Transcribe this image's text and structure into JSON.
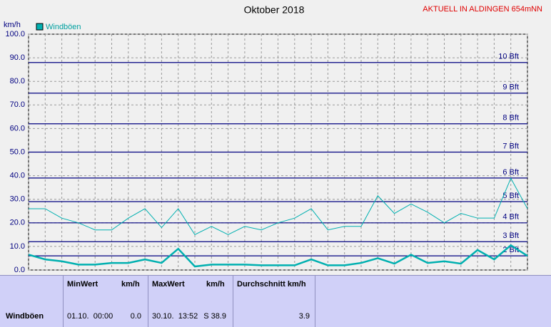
{
  "chart_data": {
    "type": "line",
    "title": "Oktober 2018",
    "subtitle": "AKTUELL IN ALDINGEN 654mNN",
    "y_label": "km/h",
    "x": [
      1,
      2,
      3,
      4,
      5,
      6,
      7,
      8,
      9,
      10,
      11,
      12,
      13,
      14,
      15,
      16,
      17,
      18,
      19,
      20,
      21,
      22,
      23,
      24,
      25,
      26,
      27,
      28,
      29,
      30,
      31
    ],
    "xlim": [
      1,
      31
    ],
    "xticks": [
      1,
      2,
      3,
      4,
      5,
      6,
      7,
      8,
      9,
      10,
      11,
      12,
      13,
      14,
      15,
      16,
      17,
      18,
      19,
      20,
      21,
      22,
      23,
      24,
      25,
      26,
      27,
      28,
      29,
      30,
      31
    ],
    "ylim": [
      0,
      100
    ],
    "yticks": [
      {
        "value": 0,
        "label": "0.0"
      },
      {
        "value": 10,
        "label": "10.0"
      },
      {
        "value": 20,
        "label": "20.0"
      },
      {
        "value": 30,
        "label": "30.0"
      },
      {
        "value": 40,
        "label": "40.0"
      },
      {
        "value": 50,
        "label": "50.0"
      },
      {
        "value": 60,
        "label": "60.0"
      },
      {
        "value": 70,
        "label": "70.0"
      },
      {
        "value": 80,
        "label": "80.0"
      },
      {
        "value": 90,
        "label": "90.0"
      },
      {
        "value": 100,
        "label": "100.0"
      }
    ],
    "grid": true,
    "beaufort": [
      {
        "value": 6,
        "label": "2 Bft"
      },
      {
        "value": 12,
        "label": "3 Bft"
      },
      {
        "value": 20,
        "label": "4 Bft"
      },
      {
        "value": 29,
        "label": "5 Bft"
      },
      {
        "value": 39,
        "label": "6 Bft"
      },
      {
        "value": 50,
        "label": "7 Bft"
      },
      {
        "value": 62,
        "label": "8 Bft"
      },
      {
        "value": 75,
        "label": "9 Bft"
      },
      {
        "value": 88,
        "label": "10 Bft"
      }
    ],
    "series": [
      {
        "name": "Windböen",
        "color": "#00b0b0",
        "values": [
          26,
          26,
          22,
          20,
          17,
          17,
          22,
          26,
          18,
          26,
          15,
          18.5,
          15,
          18.5,
          17,
          20,
          22,
          26,
          17,
          18.5,
          18.5,
          31.5,
          24,
          28,
          24.5,
          20,
          24,
          22,
          22,
          38.9,
          26
        ]
      },
      {
        "color": "#00b0b0",
        "values": [
          6.5,
          4.5,
          3.7,
          2.3,
          2.3,
          3,
          3,
          4.5,
          3,
          9,
          1.5,
          2.3,
          2.3,
          2.3,
          2,
          2,
          2,
          4.5,
          2,
          2,
          3,
          5,
          2.7,
          6.5,
          3,
          3.7,
          2.7,
          8.5,
          4.5,
          10.5,
          6
        ]
      }
    ]
  },
  "table": {
    "header": [
      "MinWert",
      "km/h",
      "MaxWert",
      "km/h",
      "Durchschnitt km/h"
    ],
    "rows": [
      [
        "Windböen",
        "01.10.  00:00",
        "0.0",
        "30.10.  13:52",
        "S 38.9",
        "3.9"
      ]
    ]
  }
}
